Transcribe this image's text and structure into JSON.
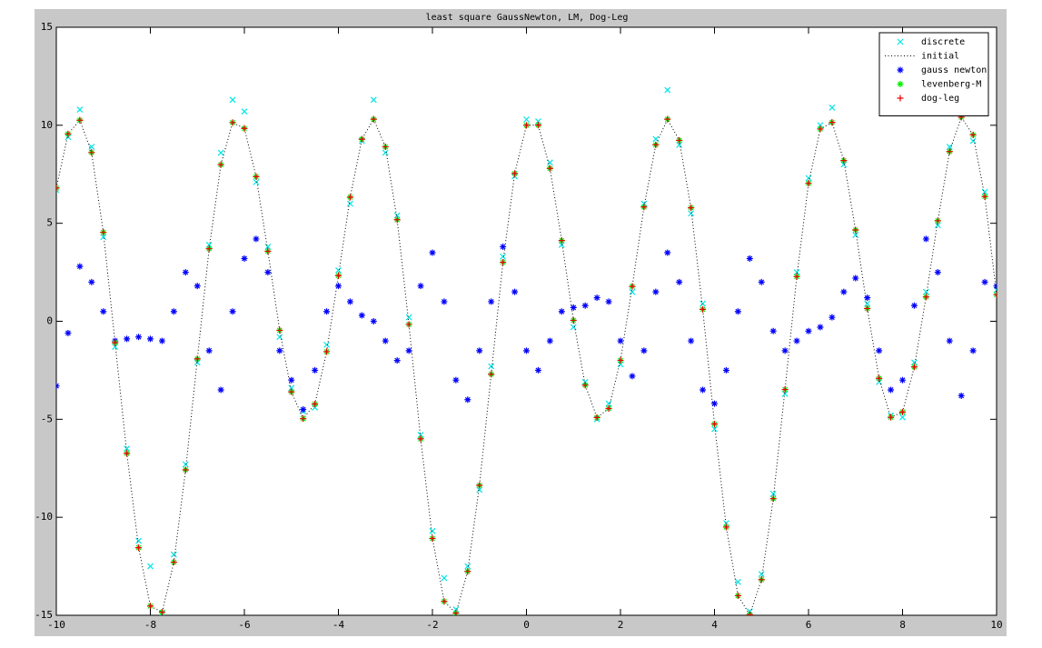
{
  "chart_data": {
    "type": "scatter-line",
    "title": "least square GaussNewton, LM, Dog-Leg",
    "x": [
      -10,
      -9.75,
      -9.5,
      -9.25,
      -9,
      -8.75,
      -8.5,
      -8.25,
      -8,
      -7.75,
      -7.5,
      -7.25,
      -7,
      -6.75,
      -6.5,
      -6.25,
      -6,
      -5.75,
      -5.5,
      -5.25,
      -5,
      -4.75,
      -4.5,
      -4.25,
      -4,
      -3.75,
      -3.5,
      -3.25,
      -3,
      -2.75,
      -2.5,
      -2.25,
      -2,
      -1.75,
      -1.5,
      -1.25,
      -1,
      -0.75,
      -0.5,
      -0.25,
      0,
      0.25,
      0.5,
      0.75,
      1,
      1.25,
      1.5,
      1.75,
      2,
      2.25,
      2.5,
      2.75,
      3,
      3.25,
      3.5,
      3.75,
      4,
      4.25,
      4.5,
      4.75,
      5,
      5.25,
      5.5,
      5.75,
      6,
      6.25,
      6.5,
      6.75,
      7,
      7.25,
      7.5,
      7.75,
      8,
      8.25,
      8.5,
      8.75,
      9,
      9.25,
      9.5,
      9.75,
      10
    ],
    "series": [
      {
        "name": "discrete",
        "color": "#00e5e5",
        "marker": "x",
        "values": [
          6.7,
          9.4,
          10.8,
          8.9,
          4.3,
          -1.3,
          -6.5,
          -11.2,
          -12.5,
          -14.9,
          -11.9,
          -7.3,
          -2.1,
          3.9,
          8.6,
          11.3,
          10.7,
          7.1,
          3.8,
          -0.8,
          -3.4,
          -4.6,
          -4.4,
          -1.2,
          2.6,
          6.0,
          9.2,
          11.3,
          8.6,
          5.4,
          0.2,
          -5.8,
          -10.7,
          -13.1,
          -14.7,
          -12.5,
          -8.6,
          -2.3,
          3.3,
          7.4,
          10.3,
          10.2,
          8.1,
          3.9,
          -0.3,
          -3.1,
          -5.0,
          -4.2,
          -2.2,
          1.5,
          6.0,
          9.3,
          11.8,
          9.0,
          5.5,
          0.9,
          -5.5,
          -10.3,
          -13.3,
          -14.8,
          -12.9,
          -8.8,
          -3.7,
          2.5,
          7.3,
          10.0,
          10.9,
          8.0,
          4.4,
          0.9,
          -3.1,
          -4.8,
          -4.9,
          -2.1,
          1.5,
          4.9,
          8.9,
          10.7,
          9.2,
          6.6,
          1.6
        ]
      },
      {
        "name": "initial",
        "color": "#000000",
        "marker": "dotted-line",
        "values": [
          6.8,
          9.56,
          10.26,
          8.61,
          4.54,
          -1.09,
          -6.74,
          -11.55,
          -14.53,
          -14.84,
          -12.29,
          -7.58,
          -1.92,
          3.7,
          7.99,
          10.14,
          9.84,
          7.38,
          3.57,
          -0.46,
          -3.6,
          -4.97,
          -4.22,
          -1.55,
          2.33,
          6.33,
          9.29,
          10.31,
          8.9,
          5.18,
          -0.16,
          -6.0,
          -11.08,
          -14.29,
          -14.89,
          -12.76,
          -8.37,
          -2.7,
          3.01,
          7.54,
          10.0,
          10.01,
          7.8,
          4.12,
          0.05,
          -3.26,
          -4.91,
          -4.45,
          -1.99,
          1.78,
          5.83,
          9.0,
          10.31,
          9.23,
          5.79,
          0.61,
          -5.24,
          -10.5,
          -14.0,
          -14.97,
          -13.18,
          -9.05,
          -3.48,
          2.28,
          7.04,
          9.81,
          10.15,
          8.2,
          4.66,
          0.65,
          -2.91,
          -4.9,
          -4.63,
          -2.33,
          1.24,
          5.13,
          8.66,
          10.41,
          9.51,
          6.36,
          1.36
        ]
      },
      {
        "name": "gauss newton",
        "color": "#0000ff",
        "marker": "star",
        "values": [
          -3.3,
          -0.6,
          2.8,
          2.0,
          0.5,
          -1.0,
          -0.9,
          -0.8,
          -0.9,
          -1.0,
          0.5,
          2.5,
          1.8,
          -1.5,
          -3.5,
          0.5,
          3.2,
          4.2,
          2.5,
          -1.5,
          -3.0,
          -4.5,
          -2.5,
          0.5,
          1.8,
          1.0,
          0.3,
          0.0,
          -1.0,
          -2.0,
          -1.5,
          1.8,
          3.5,
          1.0,
          -3.0,
          -4.0,
          -1.5,
          1.0,
          3.8,
          1.5,
          -1.5,
          -2.5,
          -1.0,
          0.5,
          0.7,
          0.8,
          1.2,
          1.0,
          -1.0,
          -2.8,
          -1.5,
          1.5,
          3.5,
          2.0,
          -1.0,
          -3.5,
          -4.2,
          -2.5,
          0.5,
          3.2,
          2.0,
          -0.5,
          -1.5,
          -1.0,
          -0.5,
          -0.3,
          0.2,
          1.5,
          2.2,
          1.2,
          -1.5,
          -3.5,
          -3.0,
          0.8,
          4.2,
          2.5,
          -1.0,
          -3.8,
          -1.5,
          2.0,
          1.8
        ]
      },
      {
        "name": "levenberg-M",
        "color": "#00ee00",
        "marker": "star",
        "values": [
          6.8,
          9.56,
          10.26,
          8.61,
          4.54,
          -1.09,
          -6.74,
          -11.55,
          -14.53,
          -14.84,
          -12.29,
          -7.58,
          -1.92,
          3.7,
          7.99,
          10.14,
          9.84,
          7.38,
          3.57,
          -0.46,
          -3.6,
          -4.97,
          -4.22,
          -1.55,
          2.33,
          6.33,
          9.29,
          10.31,
          8.9,
          5.18,
          -0.16,
          -6.0,
          -11.08,
          -14.29,
          -14.89,
          -12.76,
          -8.37,
          -2.7,
          3.01,
          7.54,
          10.0,
          10.01,
          7.8,
          4.12,
          0.05,
          -3.26,
          -4.91,
          -4.45,
          -1.99,
          1.78,
          5.83,
          9.0,
          10.31,
          9.23,
          5.79,
          0.61,
          -5.24,
          -10.5,
          -14.0,
          -14.97,
          -13.18,
          -9.05,
          -3.48,
          2.28,
          7.04,
          9.81,
          10.15,
          8.2,
          4.66,
          0.65,
          -2.91,
          -4.9,
          -4.63,
          -2.33,
          1.24,
          5.13,
          8.66,
          10.41,
          9.51,
          6.36,
          1.36
        ]
      },
      {
        "name": "dog-leg",
        "color": "#ee0000",
        "marker": "plus",
        "values": [
          6.8,
          9.56,
          10.26,
          8.61,
          4.54,
          -1.09,
          -6.74,
          -11.55,
          -14.53,
          -14.84,
          -12.29,
          -7.58,
          -1.92,
          3.7,
          7.99,
          10.14,
          9.84,
          7.38,
          3.57,
          -0.46,
          -3.6,
          -4.97,
          -4.22,
          -1.55,
          2.33,
          6.33,
          9.29,
          10.31,
          8.9,
          5.18,
          -0.16,
          -6.0,
          -11.08,
          -14.29,
          -14.89,
          -12.76,
          -8.37,
          -2.7,
          3.01,
          7.54,
          10.0,
          10.01,
          7.8,
          4.12,
          0.05,
          -3.26,
          -4.91,
          -4.45,
          -1.99,
          1.78,
          5.83,
          9.0,
          10.31,
          9.23,
          5.79,
          0.61,
          -5.24,
          -10.5,
          -14.0,
          -14.97,
          -13.18,
          -9.05,
          -3.48,
          2.28,
          7.04,
          9.81,
          10.15,
          8.2,
          4.66,
          0.65,
          -2.91,
          -4.9,
          -4.63,
          -2.33,
          1.24,
          5.13,
          8.66,
          10.41,
          9.51,
          6.36,
          1.36
        ]
      }
    ],
    "xlim": [
      -10,
      10
    ],
    "xticks": [
      -10,
      -8,
      -6,
      -4,
      -2,
      0,
      2,
      4,
      6,
      8,
      10
    ],
    "ylim": [
      -15,
      15
    ],
    "yticks": [
      -15,
      -10,
      -5,
      0,
      5,
      10,
      15
    ],
    "grid": false,
    "legend": "northeast"
  }
}
